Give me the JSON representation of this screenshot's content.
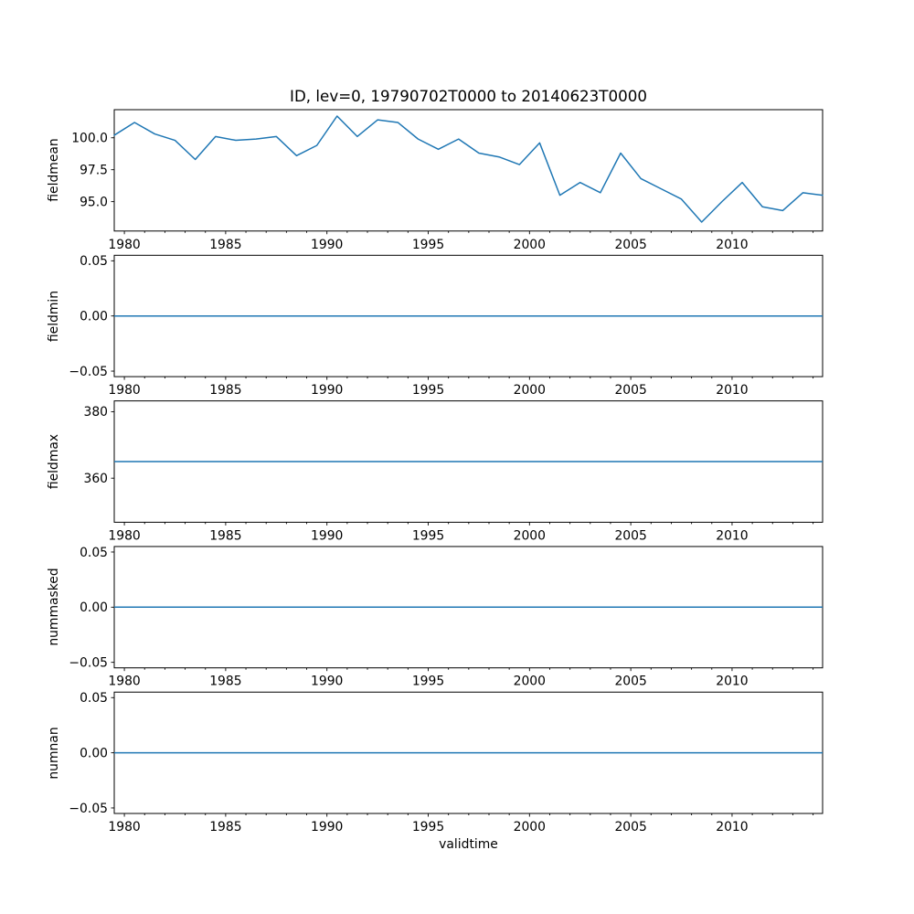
{
  "figure": {
    "title": "ID, lev=0, 19790702T0000 to 20140623T0000",
    "xlabel": "validtime",
    "background_color": "#ffffff",
    "line_color": "#1f77b4",
    "axis_color": "#000000"
  },
  "xaxis": {
    "label": "validtime",
    "xlim": [
      1979.5,
      2014.47
    ],
    "major_ticks": [
      1980,
      1985,
      1990,
      1995,
      2000,
      2005,
      2010
    ],
    "major_tick_labels": [
      "1980",
      "1985",
      "1990",
      "1995",
      "2000",
      "2005",
      "2010"
    ],
    "minor_tick_start": 1980,
    "minor_tick_end": 2014,
    "minor_tick_step": 1
  },
  "chart_data": [
    {
      "type": "line",
      "ylabel": "fieldmean",
      "ylim": [
        92.7,
        102.2
      ],
      "yticks": [
        100.0,
        97.5,
        95.0
      ],
      "ytick_labels": [
        "100.0",
        "97.5",
        "95.0"
      ],
      "x": [
        1979.5,
        1980.5,
        1981.5,
        1982.5,
        1983.5,
        1984.5,
        1985.5,
        1986.5,
        1987.5,
        1988.5,
        1989.5,
        1990.5,
        1991.5,
        1992.5,
        1993.5,
        1994.5,
        1995.5,
        1996.5,
        1997.5,
        1998.5,
        1999.5,
        2000.5,
        2001.5,
        2002.5,
        2003.5,
        2004.5,
        2005.5,
        2006.5,
        2007.5,
        2008.5,
        2009.5,
        2010.5,
        2011.5,
        2012.5,
        2013.5,
        2014.47
      ],
      "values": [
        100.2,
        101.2,
        100.3,
        99.8,
        98.3,
        100.1,
        99.8,
        99.9,
        100.1,
        98.6,
        99.4,
        101.7,
        100.1,
        101.4,
        101.2,
        99.9,
        99.1,
        99.9,
        98.8,
        98.5,
        97.9,
        99.6,
        95.5,
        96.5,
        95.7,
        98.8,
        96.8,
        96.0,
        95.2,
        93.4,
        95.0,
        96.5,
        94.6,
        94.3,
        95.7,
        95.5
      ]
    },
    {
      "type": "line",
      "ylabel": "fieldmin",
      "ylim": [
        -0.055,
        0.055
      ],
      "yticks": [
        0.05,
        0.0,
        -0.05
      ],
      "ytick_labels": [
        "0.05",
        "0.00",
        "−0.05"
      ],
      "constant": 0.0
    },
    {
      "type": "line",
      "ylabel": "fieldmax",
      "ylim": [
        346.75,
        383.25
      ],
      "yticks": [
        380,
        360
      ],
      "ytick_labels": [
        "380",
        "360"
      ],
      "constant": 365.0
    },
    {
      "type": "line",
      "ylabel": "nummasked",
      "ylim": [
        -0.055,
        0.055
      ],
      "yticks": [
        0.05,
        0.0,
        -0.05
      ],
      "ytick_labels": [
        "0.05",
        "0.00",
        "−0.05"
      ],
      "constant": 0.0
    },
    {
      "type": "line",
      "ylabel": "numnan",
      "ylim": [
        -0.055,
        0.055
      ],
      "yticks": [
        0.05,
        0.0,
        -0.05
      ],
      "ytick_labels": [
        "0.05",
        "0.00",
        "−0.05"
      ],
      "constant": 0.0
    }
  ]
}
